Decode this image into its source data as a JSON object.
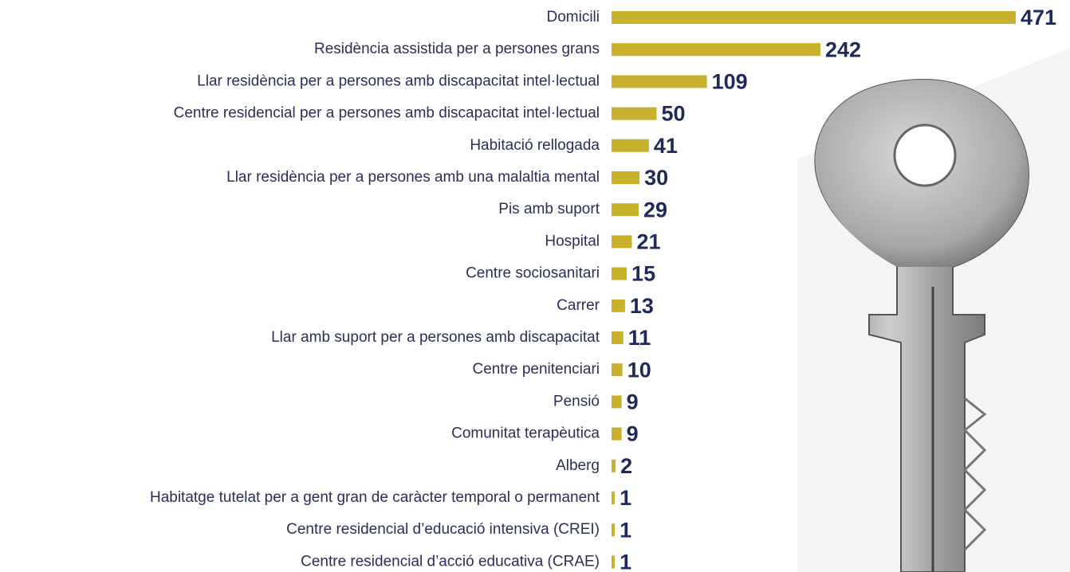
{
  "chart_data": {
    "type": "bar",
    "categories": [
      "Domicili",
      "Residència assistida per a persones grans",
      "Llar residència per a persones amb discapacitat intel·lectual",
      "Centre residencial per a persones amb discapacitat intel·lectual",
      "Habitació rellogada",
      "Llar residència per a persones amb una malaltia mental",
      "Pis amb suport",
      "Hospital",
      "Centre sociosanitari",
      "Carrer",
      "Llar amb suport per a persones amb discapacitat",
      "Centre penitenciari",
      "Pensió",
      "Comunitat terapèutica",
      "Alberg",
      "Habitatge tutelat per a gent gran de caràcter temporal o permanent",
      "Centre residencial d’educació intensiva (CREI)",
      "Centre residencial d’acció educativa (CRAE)"
    ],
    "values": [
      471,
      242,
      109,
      50,
      41,
      30,
      29,
      21,
      15,
      13,
      11,
      10,
      9,
      9,
      2,
      1,
      1,
      1
    ],
    "color": "#c8b12c"
  }
}
